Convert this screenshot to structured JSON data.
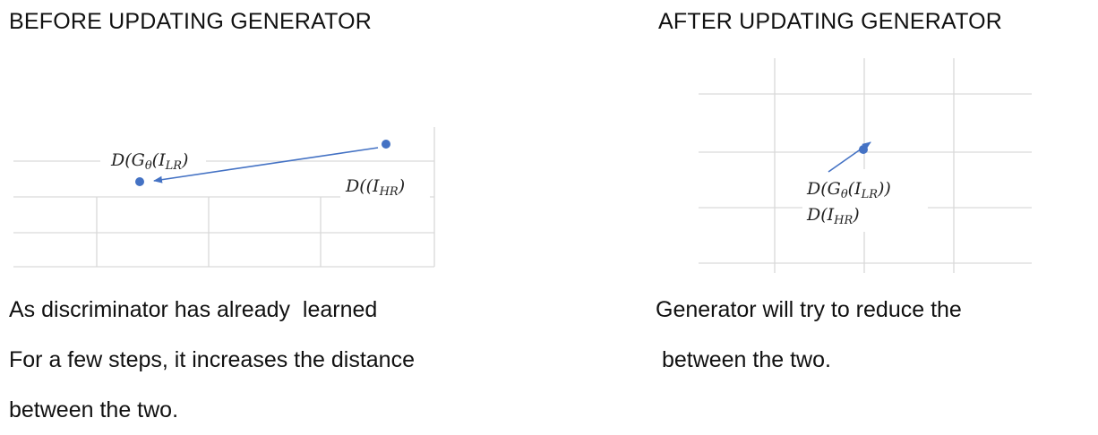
{
  "left_panel": {
    "title": "BEFORE UPDATING GENERATOR",
    "label_generated": {
      "base": "D(G",
      "theta": "θ",
      "open": "(I",
      "sub": "LR",
      "close": ")"
    },
    "label_real": {
      "base": "D((I",
      "sub": "HR",
      "close": ")"
    },
    "caption_lines": [
      "As discriminator has already  learned",
      "For a few steps, it increases the distance",
      "between the two."
    ]
  },
  "right_panel": {
    "title": "AFTER UPDATING GENERATOR",
    "label_generated": {
      "base": "D(G",
      "theta": "θ",
      "open": "(I",
      "sub": "LR",
      "close": "))"
    },
    "label_real": {
      "base": "D(I",
      "sub": "HR",
      "close": ")"
    },
    "caption_lines": [
      "Generator will try to reduce the",
      " between the two."
    ]
  },
  "colors": {
    "point": "#4472c4",
    "arrow": "#4472c4",
    "grid": "#d9d9d9"
  }
}
